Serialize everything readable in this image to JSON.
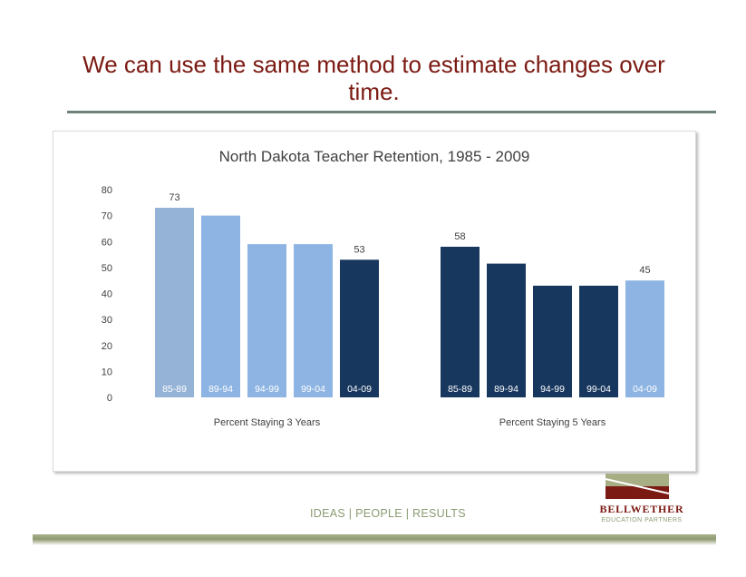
{
  "slide": {
    "title": "We can use the same method to estimate changes over time.",
    "tagline": "IDEAS  |  PEOPLE  |  RESULTS"
  },
  "logo": {
    "name": "BELLWETHER",
    "subtitle": "EDUCATION PARTNERS"
  },
  "colors": {
    "title": "#7b1a12",
    "light_bar": "#8db4e2",
    "first_bar": "#95b3d7",
    "dark_bar": "#17375e",
    "tagline": "#8a9b72"
  },
  "chart_data": {
    "type": "bar",
    "title": "North Dakota Teacher Retention, 1985 - 2009",
    "ylim": [
      0,
      80
    ],
    "yticks": [
      0,
      10,
      20,
      30,
      40,
      50,
      60,
      70,
      80
    ],
    "grid": false,
    "groups": [
      {
        "name": "Percent Staying 3 Years",
        "categories": [
          "85-89",
          "89-94",
          "94-99",
          "99-04",
          "04-09"
        ],
        "values": [
          73,
          70,
          59,
          59,
          53
        ],
        "data_labels": [
          "73",
          "",
          "",
          "",
          "53"
        ],
        "colors": [
          "#95b3d7",
          "#8db4e2",
          "#8db4e2",
          "#8db4e2",
          "#17375e"
        ]
      },
      {
        "name": "Percent Staying 5 Years",
        "categories": [
          "85-89",
          "89-94",
          "94-99",
          "99-04",
          "04-09"
        ],
        "values": [
          58,
          51.5,
          43,
          43,
          45
        ],
        "data_labels": [
          "58",
          "",
          "",
          "",
          "45"
        ],
        "colors": [
          "#17375e",
          "#17375e",
          "#17375e",
          "#17375e",
          "#8db4e2"
        ]
      }
    ]
  }
}
